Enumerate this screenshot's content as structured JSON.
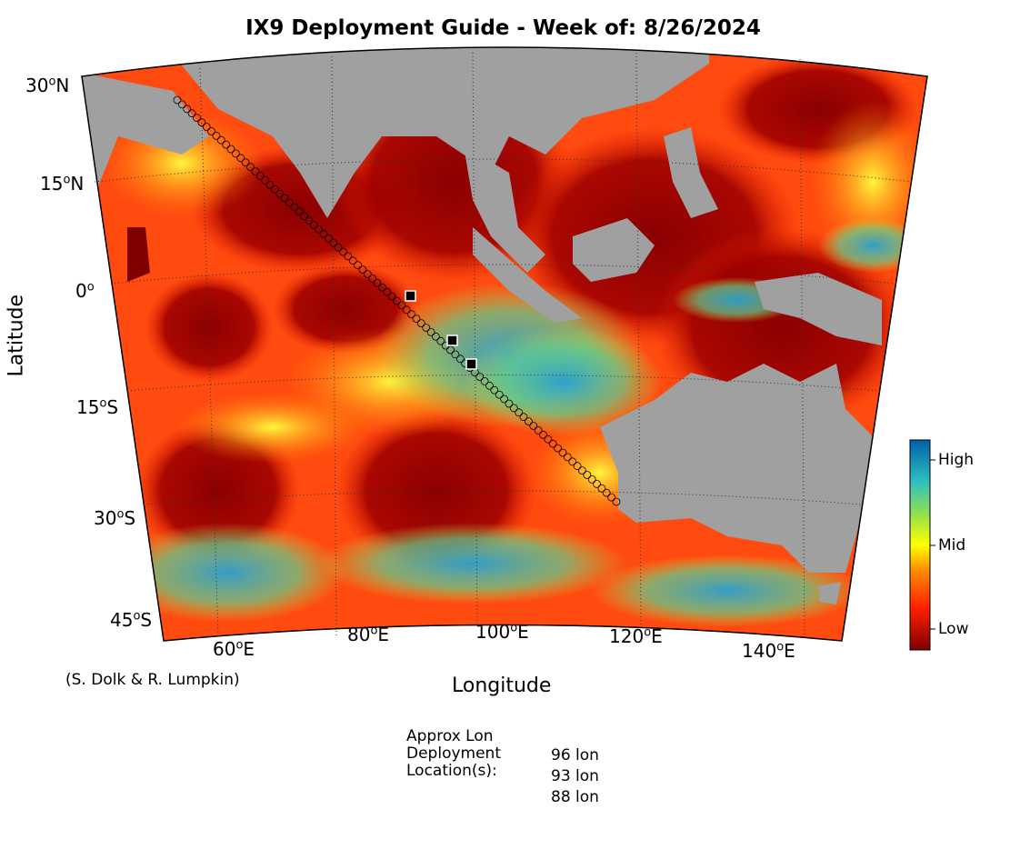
{
  "title": "IX9 Deployment Guide - Week of: 8/26/2024",
  "axes": {
    "xlabel": "Longitude",
    "ylabel": "Latitude",
    "lat_ticks": [
      {
        "deg": "30",
        "hemi": "N"
      },
      {
        "deg": "15",
        "hemi": "N"
      },
      {
        "deg": "0",
        "hemi": ""
      },
      {
        "deg": "15",
        "hemi": "S"
      },
      {
        "deg": "30",
        "hemi": "S"
      },
      {
        "deg": "45",
        "hemi": "S"
      }
    ],
    "lon_ticks": [
      {
        "deg": "60",
        "hemi": "E"
      },
      {
        "deg": "80",
        "hemi": "E"
      },
      {
        "deg": "100",
        "hemi": "E"
      },
      {
        "deg": "120",
        "hemi": "E"
      },
      {
        "deg": "140",
        "hemi": "E"
      }
    ]
  },
  "credit": "(S. Dolk & R. Lumpkin)",
  "colorbar": {
    "labels": {
      "high": "High",
      "mid": "Mid",
      "low": "Low"
    }
  },
  "deployment": {
    "label_lines": [
      "Approx Lon",
      "Deployment",
      "Location(s):"
    ],
    "locations": [
      "96 lon",
      "93 lon",
      "88 lon"
    ]
  },
  "colors": {
    "land": "#a0a0a0",
    "low": "#800000",
    "mid": "#ffff00",
    "high": "#0070b0",
    "track": "#000000",
    "gridline": "#333333"
  }
}
